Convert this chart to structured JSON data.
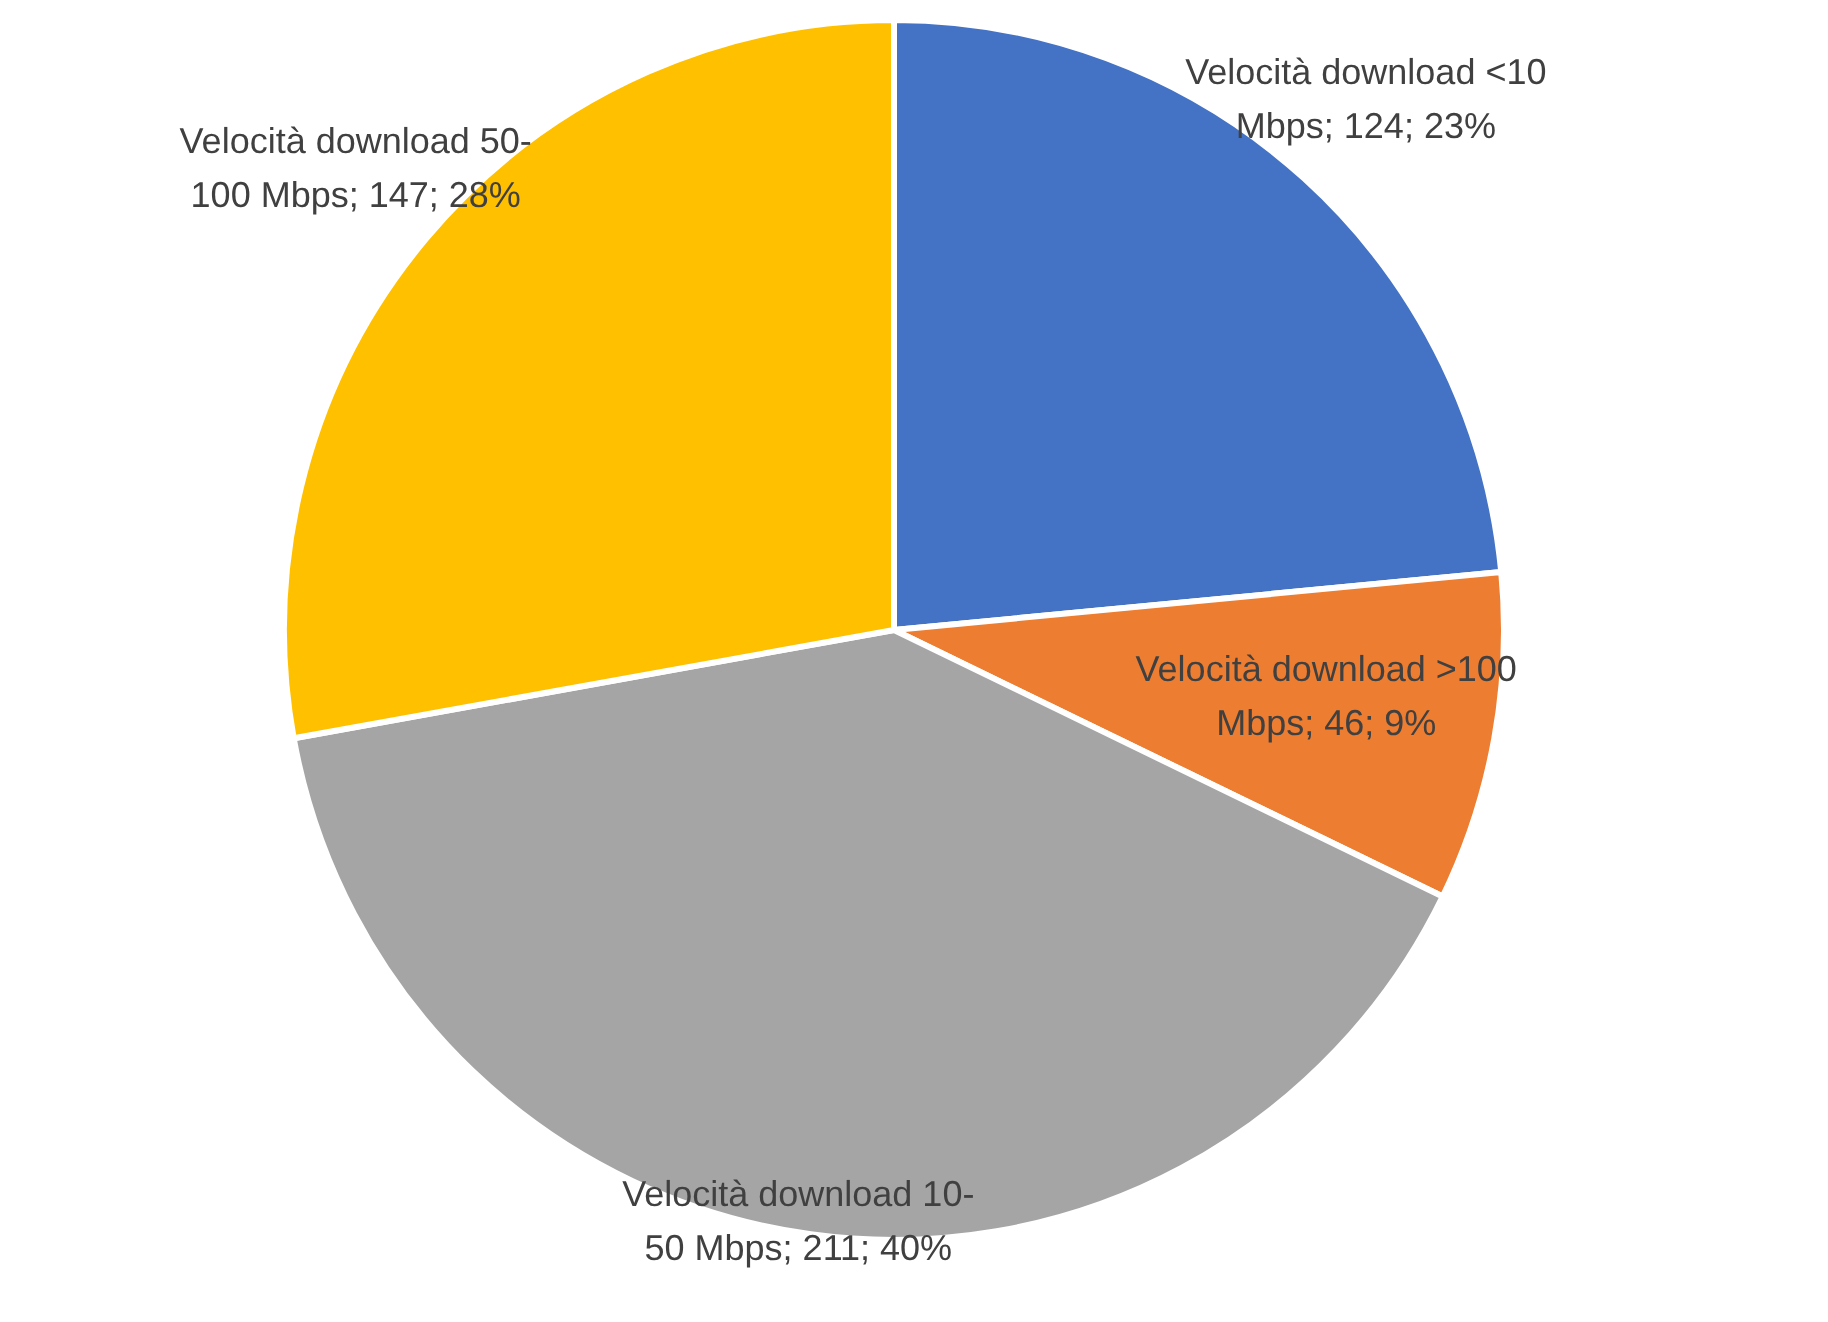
{
  "chart_data": {
    "type": "pie",
    "categories": [
      "Velocità download <10 Mbps",
      "Velocità download >100 Mbps",
      "Velocità download 10-50 Mbps",
      "Velocità download 50-100 Mbps"
    ],
    "values": [
      124,
      46,
      211,
      147
    ],
    "value_labels": [
      "124; 23%",
      "46; 9%",
      "211; 40%",
      "147; 28%"
    ],
    "colors": [
      "#4472c4",
      "#ed7d31",
      "#a5a5a5",
      "#ffc000"
    ]
  }
}
